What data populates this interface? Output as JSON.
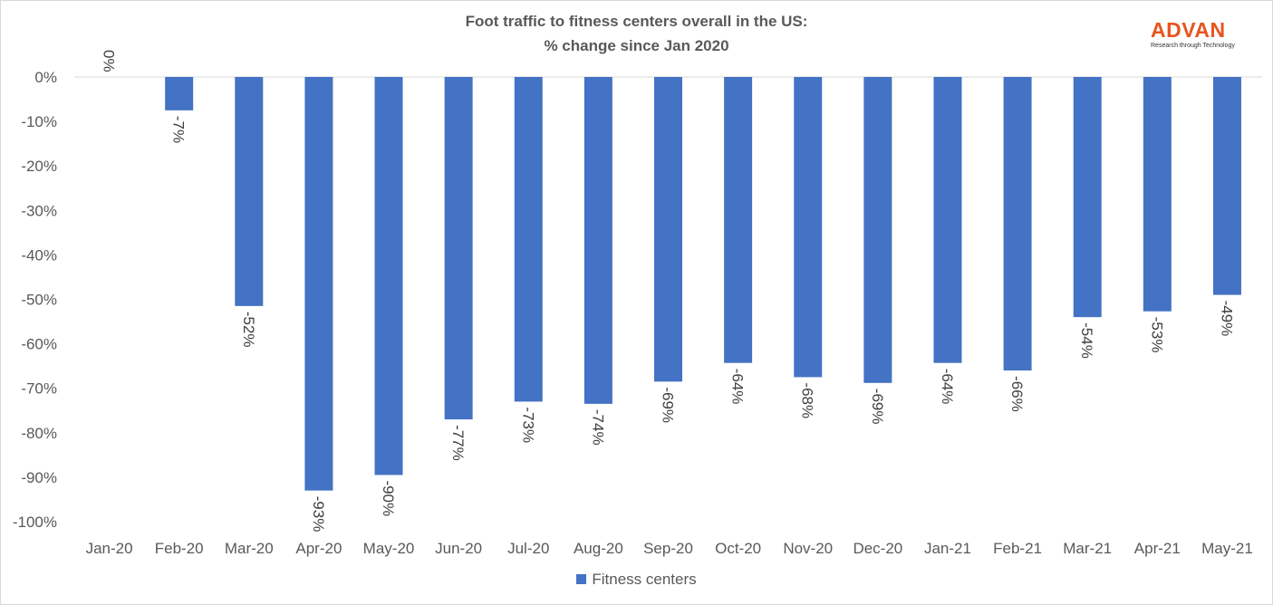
{
  "chart_data": {
    "type": "bar",
    "title": [
      "Foot traffic to fitness centers overall in the US:",
      "% change since Jan 2020"
    ],
    "xlabel": "",
    "ylabel": "",
    "categories": [
      "Jan-20",
      "Feb-20",
      "Mar-20",
      "Apr-20",
      "May-20",
      "Jun-20",
      "Jul-20",
      "Aug-20",
      "Sep-20",
      "Oct-20",
      "Nov-20",
      "Dec-20",
      "Jan-21",
      "Feb-21",
      "Mar-21",
      "Apr-21",
      "May-21"
    ],
    "series": [
      {
        "name": "Fitness centers",
        "color": "#4472c4",
        "values": [
          0,
          -7.5,
          -51.5,
          -93,
          -89.5,
          -77,
          -73,
          -73.5,
          -68.5,
          -64.3,
          -67.5,
          -68.8,
          -64.3,
          -66,
          -54,
          -52.7,
          -49
        ],
        "labels": [
          "0%",
          "-7%",
          "-52%",
          "-93%",
          "-90%",
          "-77%",
          "-73%",
          "-74%",
          "-69%",
          "-64%",
          "-68%",
          "-69%",
          "-64%",
          "-66%",
          "-54%",
          "-53%",
          "-49%"
        ]
      }
    ],
    "ylim": [
      -100,
      0
    ],
    "yticks": [
      0,
      -10,
      -20,
      -30,
      -40,
      -50,
      -60,
      -70,
      -80,
      -90,
      -100
    ],
    "ytick_labels": [
      "0%",
      "-10%",
      "-20%",
      "-30%",
      "-40%",
      "-50%",
      "-60%",
      "-70%",
      "-80%",
      "-90%",
      "-100%"
    ],
    "grid": false,
    "legend_position": "bottom"
  },
  "logo": {
    "name": "ADVAN",
    "tagline": "Research through Technology",
    "color": "#e8541e"
  },
  "colors": {
    "text": "#595959",
    "axis": "#d9d9d9"
  }
}
